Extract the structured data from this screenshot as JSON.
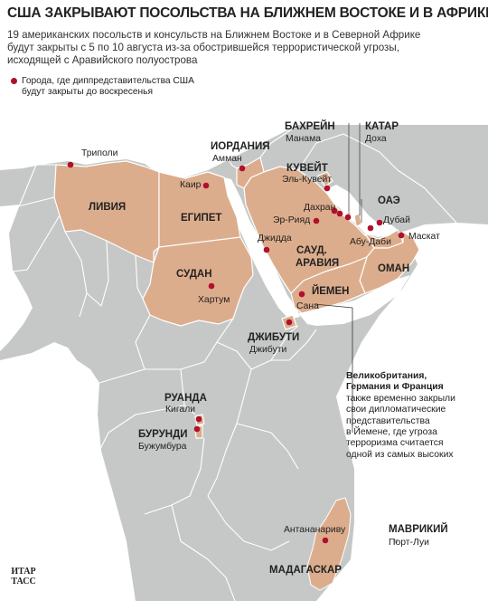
{
  "headline": "США ЗАКРЫВАЮТ ПОСОЛЬСТВА НА БЛИЖНЕМ ВОСТОКЕ И В АФРИКЕ",
  "lede": [
    "19 американских посольств и консульств на Ближнем Востоке и в Северной Африке",
    "будут закрыты с 5 по 10 августа из-за обострившейся террористической угрозы,",
    "исходящей с Аравийского полуострова"
  ],
  "legend": {
    "line1": "Города, где диппредставительства США",
    "line2": "будут закрыты до воскресенья"
  },
  "countries": {
    "libya": "ЛИВИЯ",
    "egypt": "ЕГИПЕТ",
    "sudan": "СУДАН",
    "jordan": "ИОРДАНИЯ",
    "saudi_1": "САУД.",
    "saudi_2": "АРАВИЯ",
    "yemen": "ЙЕМЕН",
    "oman": "ОМАН",
    "uae": "ОАЭ",
    "bahrain": "БАХРЕЙН",
    "qatar": "КАТАР",
    "kuwait": "КУВЕЙТ",
    "djibouti": "ДЖИБУТИ",
    "rwanda": "РУАНДА",
    "burundi": "БУРУНДИ",
    "madagascar": "МАДАГАСКАР",
    "mauritius": "МАВРИКИЙ"
  },
  "cities": {
    "tripoli": "Триполи",
    "cairo": "Каир",
    "khartoum": "Хартум",
    "amman": "Амман",
    "manama": "Манама",
    "doha": "Доха",
    "kuwait_city": "Эль-Кувейт",
    "dhahran": "Дахран",
    "riyadh": "Эр-Рияд",
    "jeddah": "Джидда",
    "dubai": "Дубай",
    "abu_dhabi": "Абу-Даби",
    "muscat": "Маскат",
    "sanaa": "Сана",
    "djibouti_city": "Джибути",
    "kigali": "Кигали",
    "bujumbura": "Бужумбура",
    "antananarivo": "Антананариву",
    "port_louis": "Порт-Луи"
  },
  "note": {
    "title_1": "Великобритания,",
    "title_2": "Германия и Франция",
    "lines": [
      "также временно закрыли",
      "свои дипломатические",
      "представительства",
      "в Йемене, где угроза",
      "терроризма считается",
      "одной из самых высоких"
    ]
  },
  "source_logo": [
    "ИТАР",
    "ТАСС"
  ],
  "colors": {
    "sea": "#ffffff",
    "land": "#c6c8c8",
    "highlight": "#dcad8c",
    "border": "#ffffff",
    "dot": "#b0102a"
  }
}
